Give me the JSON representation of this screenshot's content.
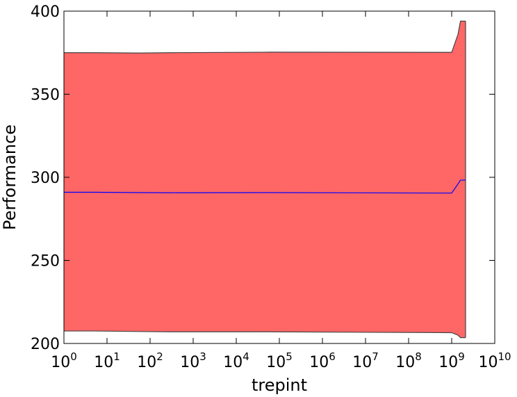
{
  "chart_data": {
    "type": "line",
    "x_label": "trepint",
    "y_label": "Performance",
    "x": [
      1,
      5,
      60,
      300,
      60000,
      1000000000,
      1400000000,
      1600000000,
      2100000000
    ],
    "values": [
      291,
      291,
      290.8,
      290.7,
      290.8,
      290.5,
      296,
      298.3,
      298.3
    ],
    "color": "#0000ff",
    "band": {
      "lower": [
        207.5,
        207.5,
        207.2,
        207,
        207,
        206.5,
        205,
        203.5,
        203.5
      ],
      "upper": [
        375,
        375,
        374.8,
        375,
        375.3,
        375.2,
        386,
        394,
        394
      ],
      "color": "#ff6666",
      "edge_color": "#444444"
    },
    "xscale": "log",
    "xlim": [
      1,
      10000000000
    ],
    "xticks": [
      {
        "value": 1,
        "label": "10^0"
      },
      {
        "value": 10,
        "label": "10^1"
      },
      {
        "value": 100,
        "label": "10^2"
      },
      {
        "value": 1000,
        "label": "10^3"
      },
      {
        "value": 10000,
        "label": "10^4"
      },
      {
        "value": 100000,
        "label": "10^5"
      },
      {
        "value": 1000000,
        "label": "10^6"
      },
      {
        "value": 10000000,
        "label": "10^7"
      },
      {
        "value": 100000000,
        "label": "10^8"
      },
      {
        "value": 1000000000,
        "label": "10^9"
      },
      {
        "value": 10000000000,
        "label": "10^10"
      }
    ],
    "ylim": [
      200,
      400
    ],
    "yticks": [
      200,
      250,
      300,
      350,
      400
    ]
  }
}
